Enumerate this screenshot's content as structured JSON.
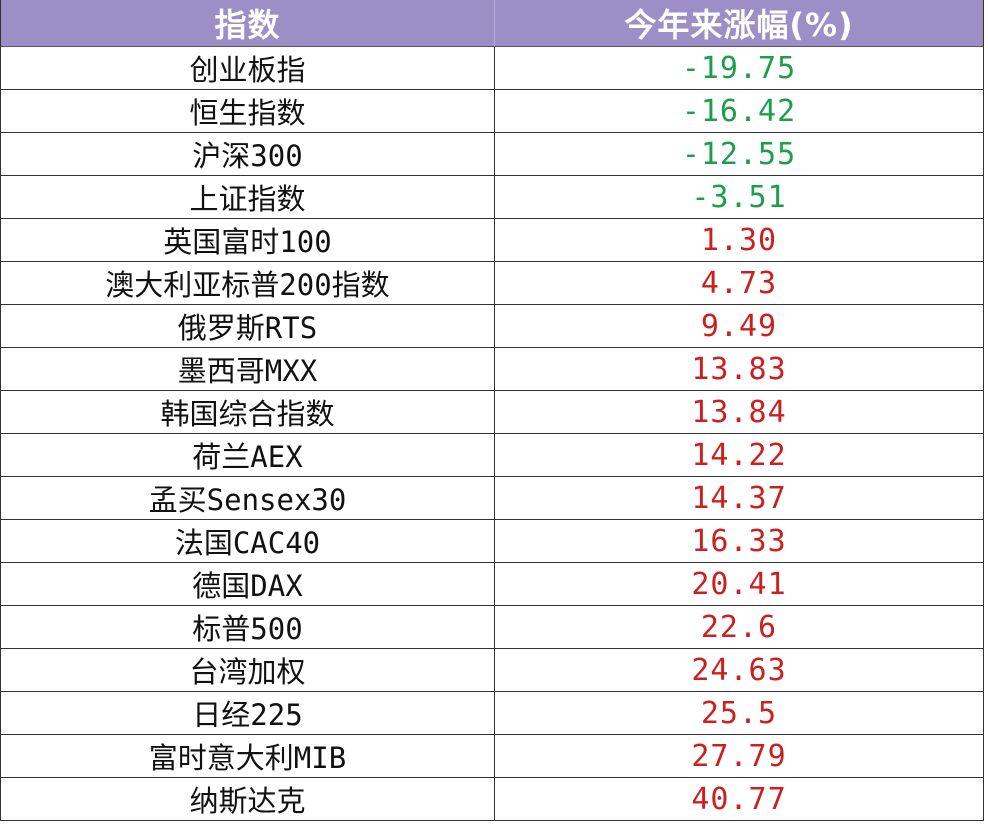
{
  "colors": {
    "header_bg": "#9c8ec6",
    "header_text": "#ffffff",
    "negative": "#1e9e4a",
    "positive": "#cc1f1f"
  },
  "chart_data": {
    "type": "table",
    "columns": [
      "指数",
      "今年来涨幅(%)"
    ],
    "rows": [
      [
        "创业板指",
        "-19.75"
      ],
      [
        "恒生指数",
        "-16.42"
      ],
      [
        "沪深300",
        "-12.55"
      ],
      [
        "上证指数",
        "-3.51"
      ],
      [
        "英国富时100",
        "1.30"
      ],
      [
        "澳大利亚标普200指数",
        "4.73"
      ],
      [
        "俄罗斯RTS",
        "9.49"
      ],
      [
        "墨西哥MXX",
        "13.83"
      ],
      [
        "韩国综合指数",
        "13.84"
      ],
      [
        "荷兰AEX",
        "14.22"
      ],
      [
        "孟买Sensex30",
        "14.37"
      ],
      [
        "法国CAC40",
        "16.33"
      ],
      [
        "德国DAX",
        "20.41"
      ],
      [
        "标普500",
        "22.6"
      ],
      [
        "台湾加权",
        "24.63"
      ],
      [
        "日经225",
        "25.5"
      ],
      [
        "富时意大利MIB",
        "27.79"
      ],
      [
        "纳斯达克",
        "40.77"
      ]
    ]
  }
}
